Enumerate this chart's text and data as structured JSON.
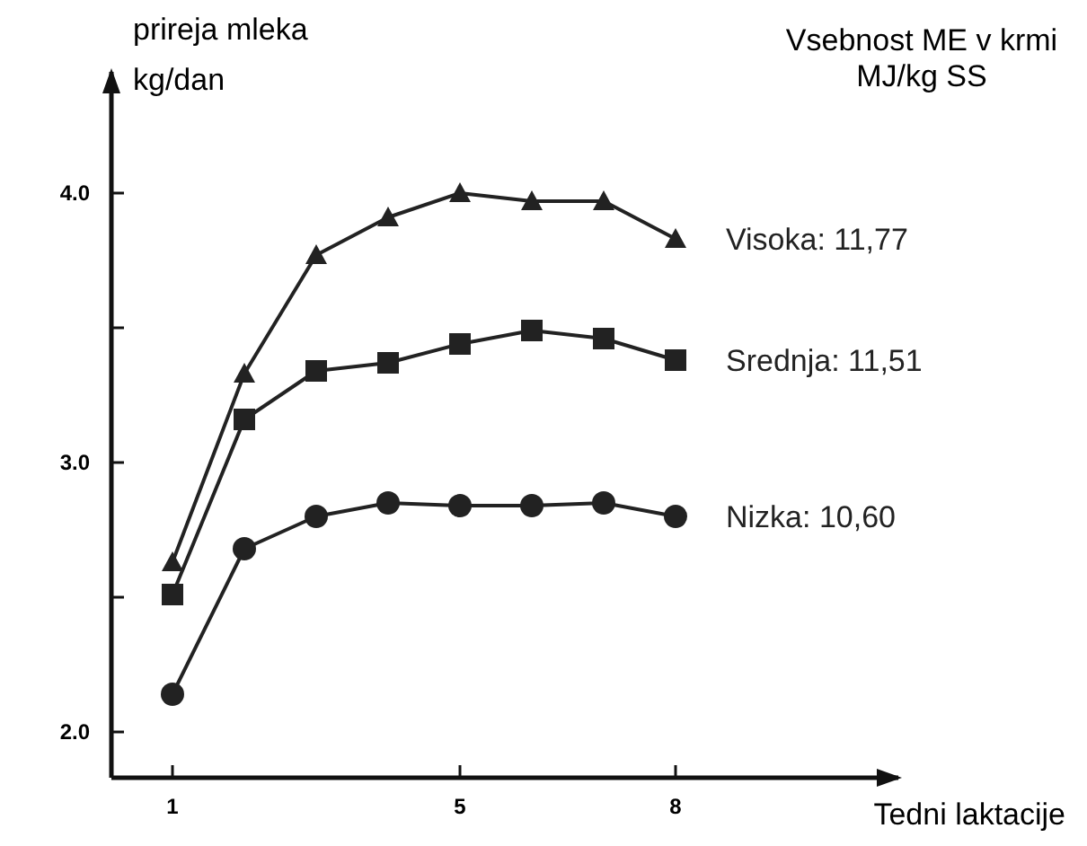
{
  "chart_data": {
    "type": "line",
    "ylabel": "prireja mleka\nkg/dan",
    "xlabel": "Tedni laktacije",
    "legend_title": "Vsebnost ME v krmi\nMJ/kg SS",
    "x": [
      1,
      2,
      3,
      4,
      5,
      6,
      7,
      8
    ],
    "xlim": [
      0.15,
      11.1
    ],
    "xticks": [
      1,
      5,
      8
    ],
    "ylim": [
      1.83,
      4.45
    ],
    "yticks": [
      {
        "value": 2,
        "label": "2.0"
      },
      {
        "value": 2.5,
        "label": null
      },
      {
        "value": 3,
        "label": "3.0"
      },
      {
        "value": 3.5,
        "label": null
      },
      {
        "value": 4,
        "label": "4.0"
      }
    ],
    "grid": false,
    "legend": "right",
    "line_style": "solid",
    "series": [
      {
        "name": "Visoka: 11,77",
        "color": "#222222",
        "marker": "triangle",
        "values": [
          2.63,
          3.33,
          3.77,
          3.91,
          4.0,
          3.97,
          3.97,
          3.83
        ]
      },
      {
        "name": "Srednja: 11,51",
        "color": "#222222",
        "marker": "square",
        "values": [
          2.51,
          3.16,
          3.34,
          3.37,
          3.44,
          3.49,
          3.46,
          3.38
        ]
      },
      {
        "name": "Nizka: 10,60",
        "color": "#222222",
        "marker": "circle",
        "values": [
          2.14,
          2.68,
          2.8,
          2.85,
          2.84,
          2.84,
          2.85,
          2.8
        ]
      }
    ]
  }
}
